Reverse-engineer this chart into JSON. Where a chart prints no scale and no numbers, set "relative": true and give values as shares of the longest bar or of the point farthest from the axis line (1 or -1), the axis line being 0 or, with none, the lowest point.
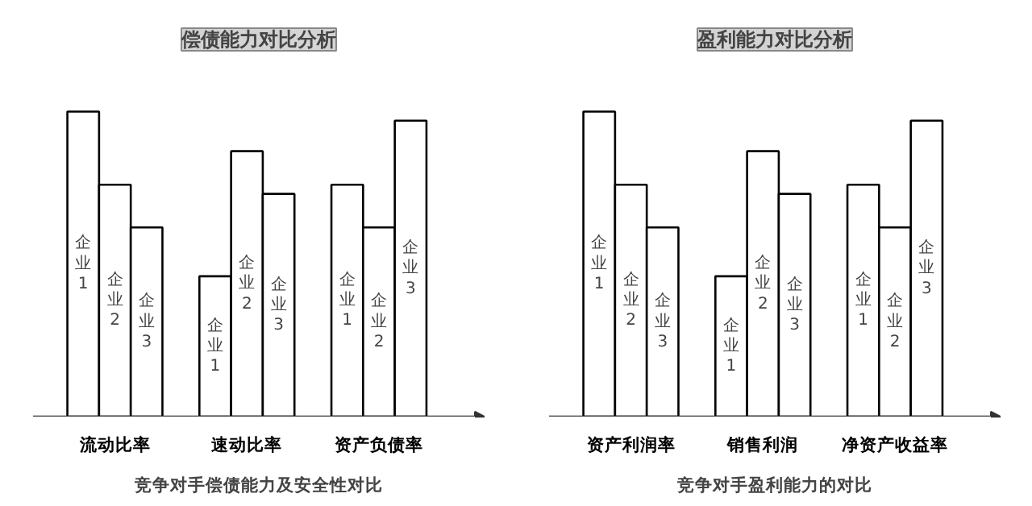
{
  "chart_data": [
    {
      "type": "bar",
      "title": "偿债能力对比分析",
      "categories": [
        "流动比率",
        "速动比率",
        "资产负债率"
      ],
      "relative": true,
      "series": [
        {
          "name": "企业1",
          "color": "#ffffff",
          "values": [
            1,
            0.46,
            0.76
          ]
        },
        {
          "name": "企业2",
          "color": "#ffffff",
          "values": [
            0.76,
            0.87,
            0.62
          ]
        },
        {
          "name": "企业3",
          "color": "#ffffff",
          "values": [
            0.62,
            0.73,
            0.97
          ]
        }
      ],
      "annotations": [
        "竞争对手偿债能力及安全性对比"
      ]
    },
    {
      "type": "bar",
      "title": "盈利能力对比分析",
      "categories": [
        "资产利润率",
        "销售利润",
        "净资产收益率"
      ],
      "relative": true,
      "series": [
        {
          "name": "企业1",
          "color": "#ffffff",
          "values": [
            1,
            0.46,
            0.76
          ]
        },
        {
          "name": "企业2",
          "color": "#ffffff",
          "values": [
            0.76,
            0.87,
            0.62
          ]
        },
        {
          "name": "企业3",
          "color": "#ffffff",
          "values": [
            0.62,
            0.73,
            0.97
          ]
        }
      ],
      "annotations": [
        "竞争对手盈利能力的对比"
      ]
    }
  ]
}
